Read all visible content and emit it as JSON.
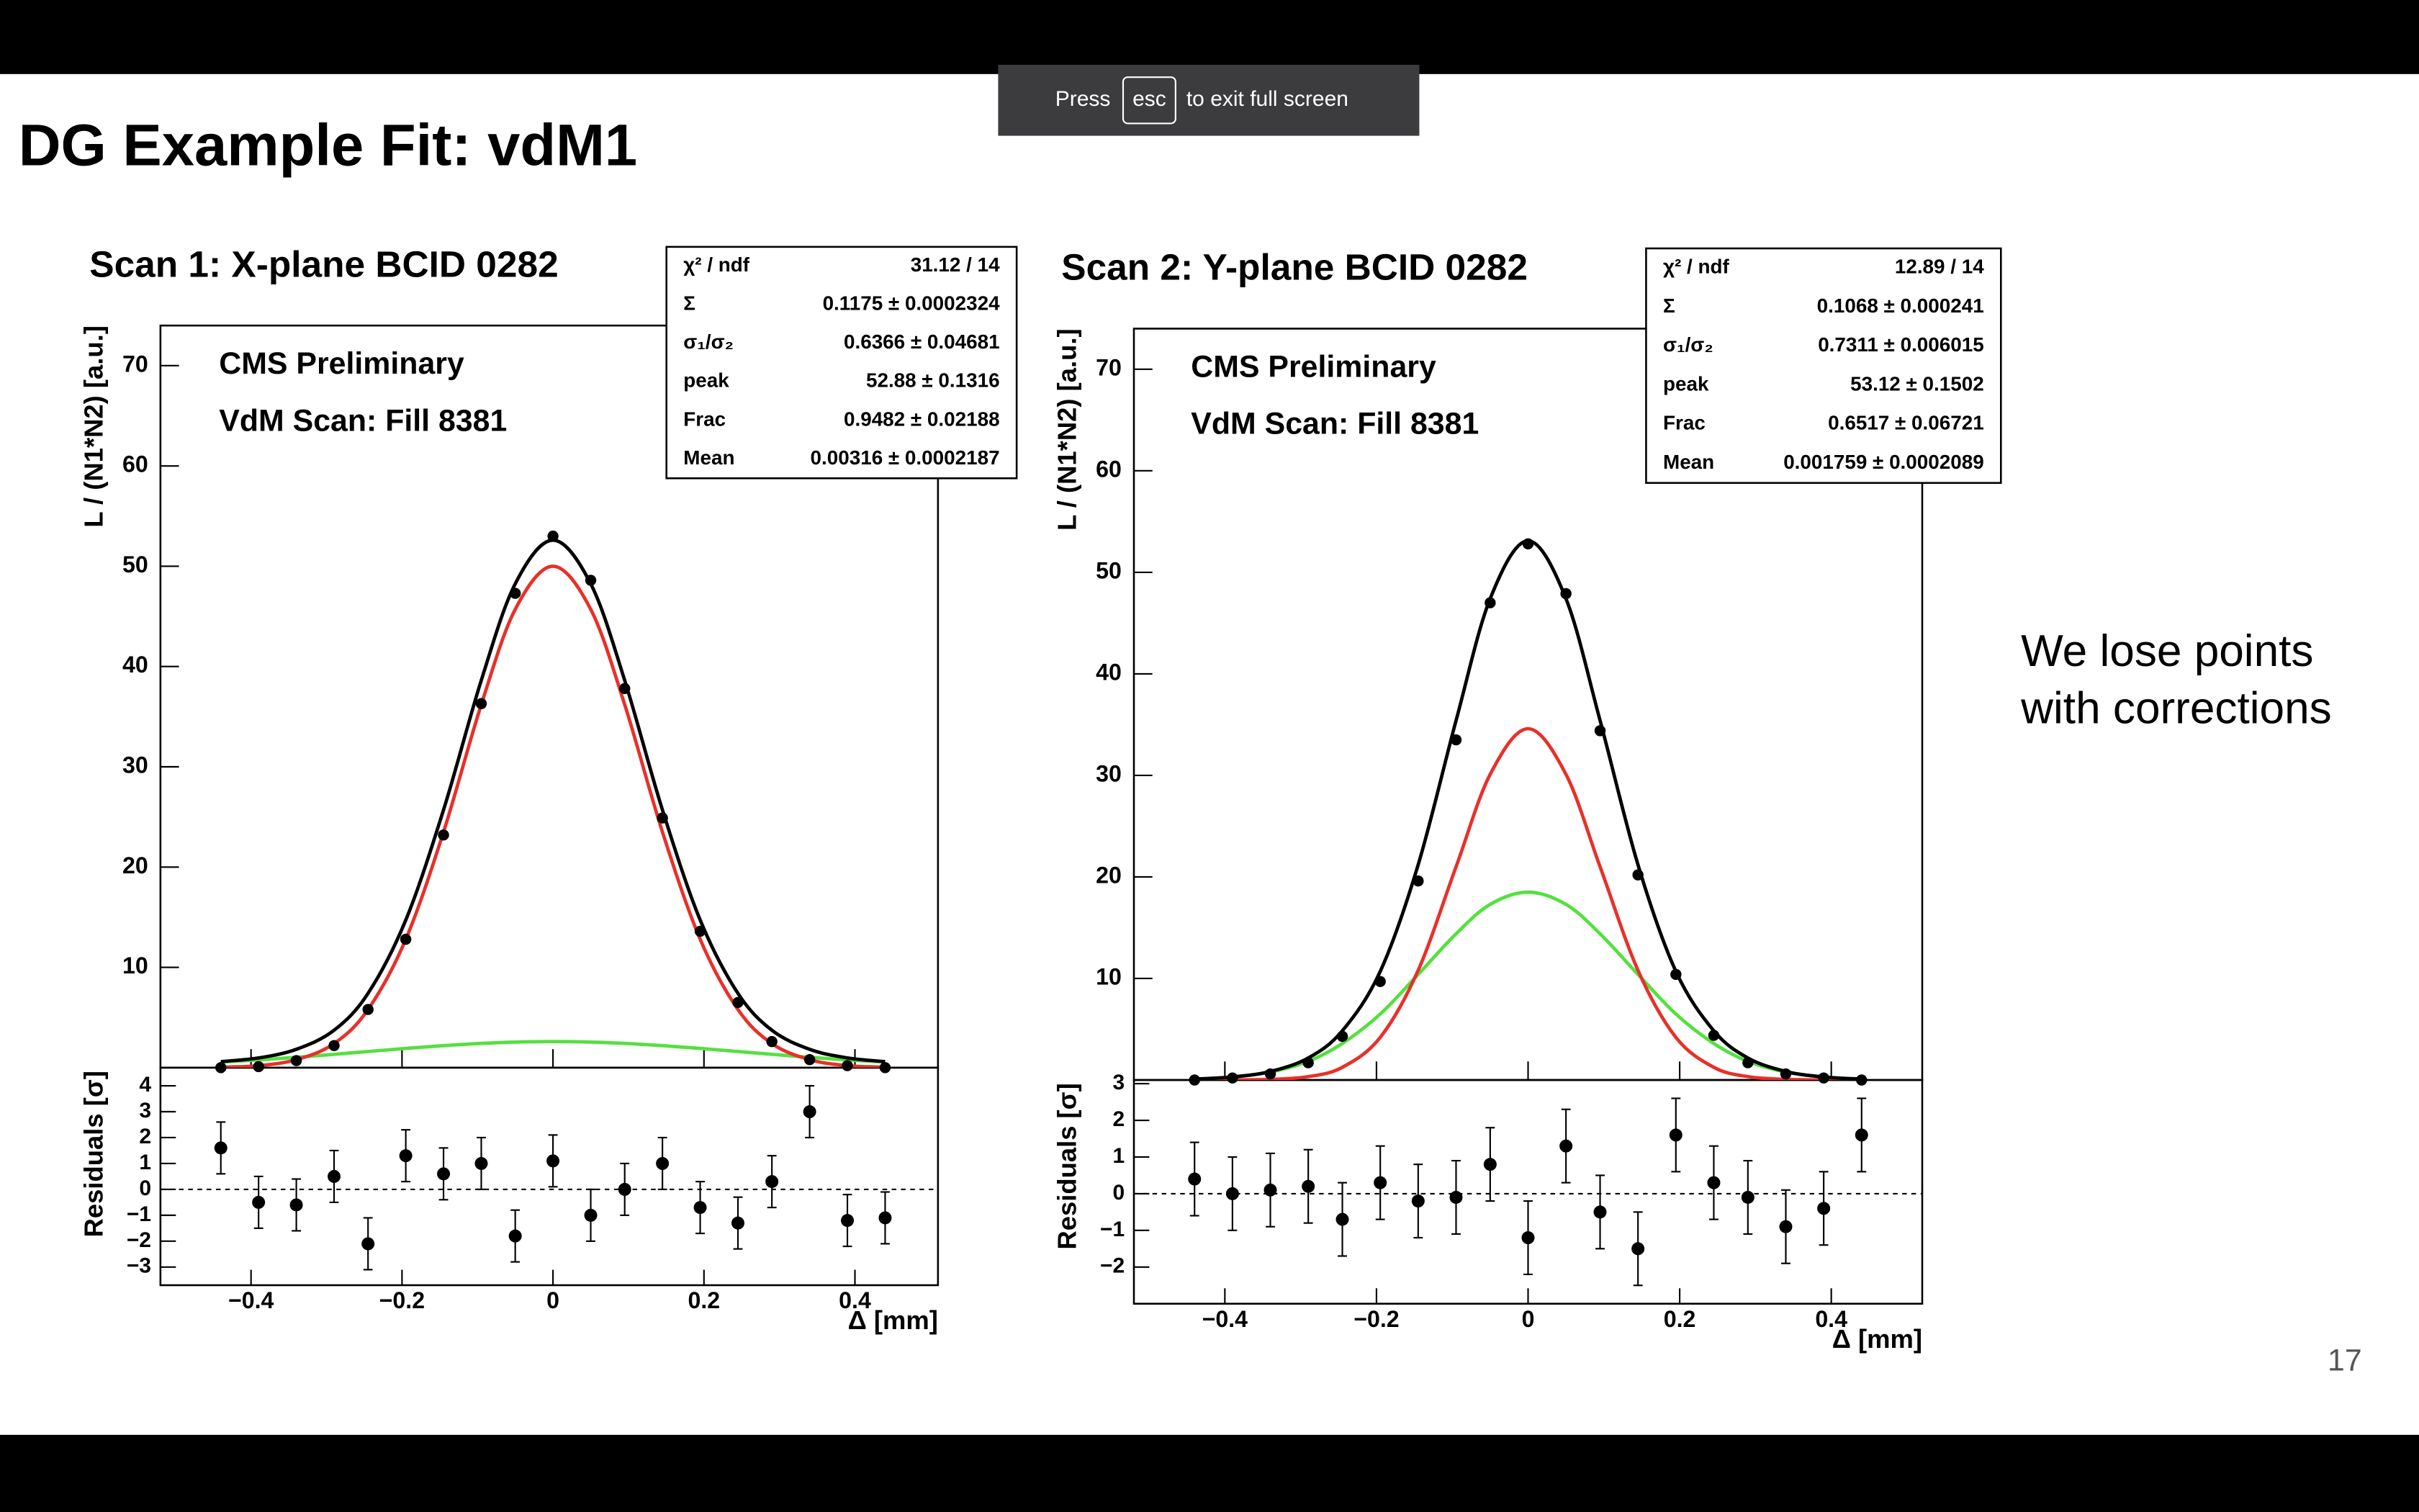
{
  "banner": {
    "before": "Press",
    "key": "esc",
    "after": "to exit full screen"
  },
  "slide_title": "DG Example Fit: vdM1",
  "side_note": [
    "We lose points",
    "with corrections"
  ],
  "page_number": "17",
  "chart_data": [
    {
      "type": "scatter",
      "title": "Scan 1: X-plane BCID 0282",
      "annotations": [
        "CMS Preliminary",
        "VdM Scan: Fill 8381"
      ],
      "stats": [
        {
          "label": "χ² / ndf",
          "value": "31.12 / 14"
        },
        {
          "label": "Σ",
          "value": "0.1175 ± 0.0002324"
        },
        {
          "label": "σ₁/σ₂",
          "value": "0.6366 ± 0.04681"
        },
        {
          "label": "peak",
          "value": "52.88 ± 0.1316"
        },
        {
          "label": "Frac",
          "value": "0.9482 ± 0.02188"
        },
        {
          "label": "Mean",
          "value": "0.00316 ± 0.0002187"
        }
      ],
      "ylabel": "L / (N1*N2) [a.u.]",
      "xlabel": "Δ [mm]",
      "xlim": [
        -0.52,
        0.51
      ],
      "xticks": [
        {
          "value": -0.4,
          "label": "−0.4"
        },
        {
          "value": -0.2,
          "label": "−0.2"
        },
        0,
        0.2,
        0.4
      ],
      "ylim": [
        0,
        74
      ],
      "yticks": [
        10,
        20,
        30,
        40,
        50,
        60,
        70
      ],
      "x": [
        -0.44,
        -0.39,
        -0.34,
        -0.29,
        -0.245,
        -0.195,
        -0.145,
        -0.095,
        -0.05,
        0,
        0.05,
        0.095,
        0.145,
        0.195,
        0.245,
        0.29,
        0.34,
        0.39,
        0.44
      ],
      "series": [
        {
          "style": "line",
          "color": "#55e040",
          "values": [
            0.55,
            0.77,
            1.03,
            1.33,
            1.61,
            1.92,
            2.2,
            2.42,
            2.55,
            2.6,
            2.55,
            2.42,
            2.2,
            1.92,
            1.61,
            1.33,
            1.03,
            0.77,
            0.55
          ]
        },
        {
          "style": "line",
          "color": "#e8302a",
          "values": [
            0.05,
            0.2,
            0.8,
            2.4,
            5.8,
            12.8,
            23.5,
            36.2,
            45.7,
            50,
            45.7,
            36.2,
            23.5,
            12.8,
            5.8,
            2.4,
            0.8,
            0.2,
            0.05
          ]
        },
        {
          "style": "line",
          "color": "#000000",
          "values": [
            0.6,
            0.97,
            1.83,
            3.73,
            7.41,
            14.72,
            25.7,
            38.62,
            48.25,
            52.6,
            48.25,
            38.62,
            25.7,
            14.72,
            7.41,
            3.73,
            1.83,
            0.97,
            0.6
          ]
        },
        {
          "style": "points",
          "color": "#000000",
          "values": [
            0,
            0.1,
            0.7,
            2.2,
            5.8,
            12.8,
            23.2,
            36.3,
            47.3,
            53.0,
            48.6,
            37.8,
            24.9,
            13.6,
            6.5,
            2.6,
            0.8,
            0.2,
            0
          ]
        }
      ],
      "residuals": {
        "ylabel": "Residuals [σ]",
        "ylim": [
          -3.7,
          4.7
        ],
        "yticks": [
          {
            "value": -3,
            "label": "−3"
          },
          {
            "value": -2,
            "label": "−2"
          },
          {
            "value": -1,
            "label": "−1"
          },
          0,
          1,
          2,
          3,
          4
        ],
        "values": [
          1.6,
          -0.5,
          -0.6,
          0.5,
          -2.1,
          1.3,
          0.6,
          1.0,
          -1.8,
          1.1,
          -1.0,
          0,
          1.0,
          -0.7,
          -1.3,
          0.3,
          3.0,
          -1.2,
          -1.1
        ],
        "errors": [
          1,
          1,
          1,
          1,
          1,
          1,
          1,
          1,
          1,
          1,
          1,
          1,
          1,
          1,
          1,
          1,
          1,
          1,
          1
        ]
      }
    },
    {
      "type": "scatter",
      "title": "Scan 2: Y-plane BCID 0282",
      "annotations": [
        "CMS Preliminary",
        "VdM Scan: Fill 8381"
      ],
      "stats": [
        {
          "label": "χ² / ndf",
          "value": "12.89 / 14"
        },
        {
          "label": "Σ",
          "value": "0.1068 ± 0.000241"
        },
        {
          "label": "σ₁/σ₂",
          "value": "0.7311 ± 0.006015"
        },
        {
          "label": "peak",
          "value": "53.12 ± 0.1502"
        },
        {
          "label": "Frac",
          "value": "0.6517 ± 0.06721"
        },
        {
          "label": "Mean",
          "value": "0.001759 ± 0.0002089"
        }
      ],
      "ylabel": "L / (N1*N2) [a.u.]",
      "xlabel": "Δ [mm]",
      "xlim": [
        -0.52,
        0.52
      ],
      "xticks": [
        {
          "value": -0.4,
          "label": "−0.4"
        },
        {
          "value": -0.2,
          "label": "−0.2"
        },
        0,
        0.2,
        0.4
      ],
      "ylim": [
        0,
        74
      ],
      "yticks": [
        10,
        20,
        30,
        40,
        50,
        60,
        70
      ],
      "x": [
        -0.44,
        -0.39,
        -0.34,
        -0.29,
        -0.245,
        -0.195,
        -0.145,
        -0.095,
        -0.05,
        0,
        0.05,
        0.095,
        0.145,
        0.195,
        0.245,
        0.29,
        0.34,
        0.39,
        0.44
      ],
      "series": [
        {
          "style": "line",
          "color": "#55e040",
          "values": [
            0.09,
            0.29,
            0.78,
            1.84,
            3.6,
            6.5,
            10.4,
            14.4,
            17.3,
            18.5,
            17.3,
            14.4,
            10.4,
            6.5,
            3.6,
            1.84,
            0.78,
            0.29,
            0.09
          ]
        },
        {
          "style": "line",
          "color": "#e8302a",
          "values": [
            0,
            0.01,
            0.06,
            0.33,
            1.25,
            4.2,
            10.8,
            21.0,
            30.1,
            34.6,
            30.1,
            21.0,
            10.8,
            4.2,
            1.25,
            0.33,
            0.06,
            0.01,
            0
          ]
        },
        {
          "style": "line",
          "color": "#000000",
          "values": [
            0.09,
            0.3,
            0.84,
            2.17,
            4.85,
            10.7,
            21.2,
            35.4,
            47.4,
            53.1,
            47.4,
            35.4,
            21.2,
            10.7,
            4.85,
            2.17,
            0.84,
            0.3,
            0.09
          ]
        },
        {
          "style": "points",
          "color": "#000000",
          "values": [
            0,
            0.2,
            0.6,
            1.7,
            4.3,
            9.7,
            19.6,
            33.5,
            47.0,
            52.8,
            47.9,
            34.4,
            20.2,
            10.4,
            4.4,
            1.7,
            0.6,
            0.2,
            0
          ]
        }
      ],
      "residuals": {
        "ylabel": "Residuals [σ]",
        "ylim": [
          -3.0,
          3.1
        ],
        "yticks": [
          {
            "value": -2,
            "label": "−2"
          },
          {
            "value": -1,
            "label": "−1"
          },
          0,
          1,
          2,
          3
        ],
        "values": [
          0.4,
          0,
          0.1,
          0.2,
          -0.7,
          0.3,
          -0.2,
          -0.1,
          0.8,
          -1.2,
          1.3,
          -0.5,
          -1.5,
          1.6,
          0.3,
          -0.1,
          -0.9,
          -0.4,
          1.6
        ],
        "errors": [
          1,
          1,
          1,
          1,
          1,
          1,
          1,
          1,
          1,
          1,
          1,
          1,
          1,
          1,
          1,
          1,
          1,
          1,
          1
        ]
      }
    }
  ]
}
